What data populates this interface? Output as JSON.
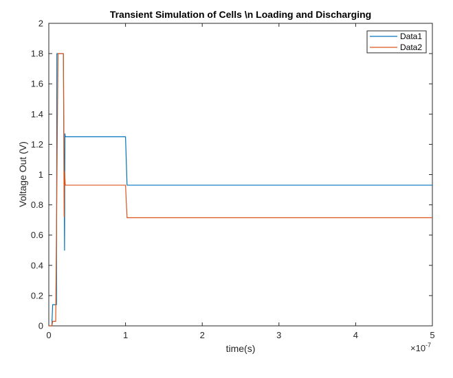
{
  "chart_data": {
    "type": "line",
    "title": "Transient Simulation of Cells \\n Loading and Discharging",
    "xlabel": "time(s)",
    "ylabel": "Voltage Out (V)",
    "x_exponent_label": "×10",
    "x_exponent_power": "-7",
    "xlim": [
      0,
      5e-07
    ],
    "ylim": [
      0,
      2
    ],
    "x_ticks": [
      0,
      1e-07,
      2e-07,
      3e-07,
      4e-07,
      5e-07
    ],
    "x_tick_labels": [
      "0",
      "1",
      "2",
      "3",
      "4",
      "5"
    ],
    "y_ticks": [
      0,
      0.2,
      0.4,
      0.6,
      0.8,
      1,
      1.2,
      1.4,
      1.6,
      1.8,
      2
    ],
    "y_tick_labels": [
      "0",
      "0.2",
      "0.4",
      "0.6",
      "0.8",
      "1",
      "1.2",
      "1.4",
      "1.6",
      "1.8",
      "2"
    ],
    "grid": false,
    "legend_position": "top-right",
    "series": [
      {
        "name": "Data1",
        "color": "#0072BD",
        "x": [
          0,
          4e-09,
          5e-09,
          1e-08,
          1.05e-08,
          1.2e-08,
          1.6e-08,
          1.9e-08,
          2e-08,
          2.05e-08,
          2.1e-08,
          2.15e-08,
          2.2e-08,
          2.3e-08,
          1e-07,
          1.02e-07,
          5e-07
        ],
        "y": [
          0,
          0,
          0.14,
          0.14,
          1.8,
          1.8,
          1.8,
          1.8,
          1.0,
          0.5,
          1.27,
          1.25,
          1.25,
          1.25,
          1.25,
          0.93,
          0.93
        ]
      },
      {
        "name": "Data2",
        "color": "#D95319",
        "x": [
          0,
          4e-09,
          5e-09,
          9e-09,
          1.2e-08,
          1.5e-08,
          1.9e-08,
          2e-08,
          2.05e-08,
          2.15e-08,
          2.3e-08,
          1e-07,
          1.02e-07,
          5e-07
        ],
        "y": [
          0,
          0,
          0.03,
          0.03,
          1.8,
          1.8,
          1.8,
          0.72,
          1.02,
          0.93,
          0.93,
          0.93,
          0.715,
          0.715
        ]
      }
    ]
  }
}
